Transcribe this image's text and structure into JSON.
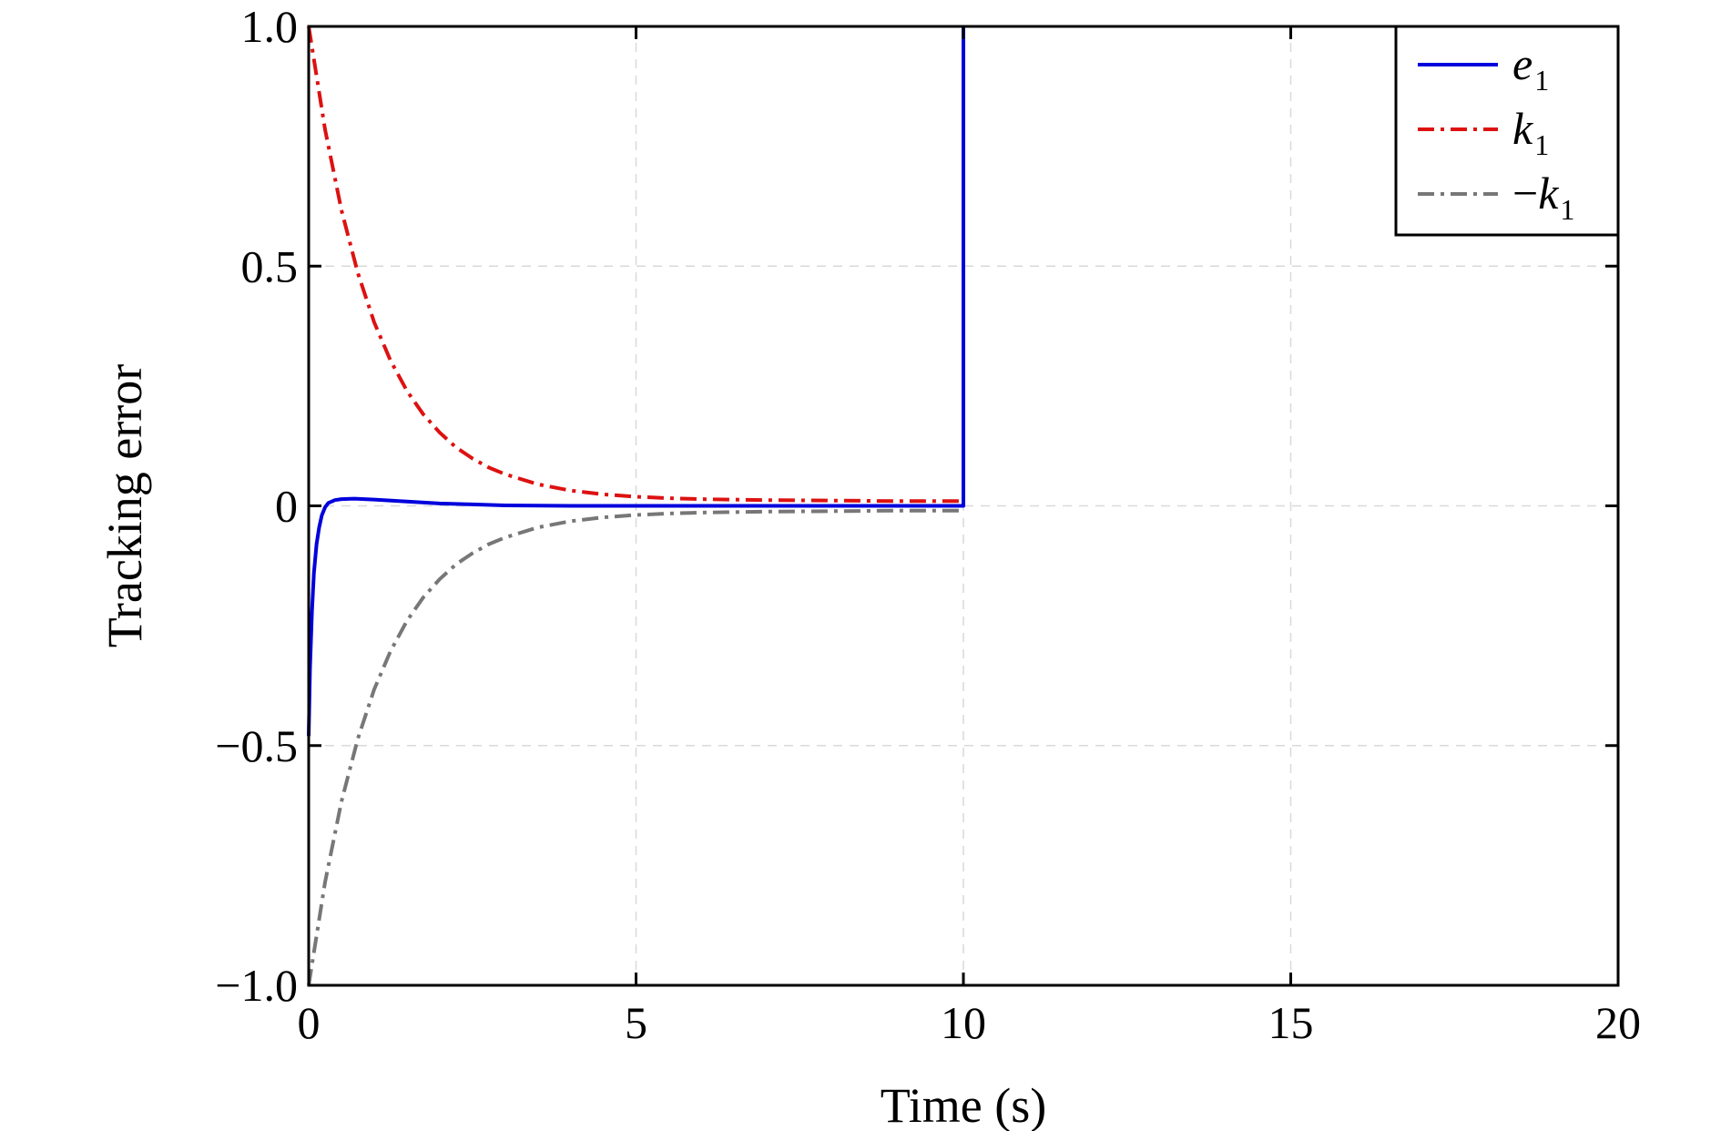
{
  "chart_data": {
    "type": "line",
    "xlabel": "Time (s)",
    "ylabel": "Tracking error",
    "xlim": [
      0,
      20
    ],
    "ylim": [
      -1.0,
      1.0
    ],
    "xticks": [
      0,
      5,
      10,
      15,
      20
    ],
    "xtick_labels": [
      "0",
      "5",
      "10",
      "15",
      "20"
    ],
    "yticks": [
      -1.0,
      -0.5,
      0,
      0.5,
      1.0
    ],
    "ytick_labels": [
      "−1.0",
      "−0.5",
      "0",
      "0.5",
      "1.0"
    ],
    "grid": true,
    "legend_position": "top-right",
    "series": [
      {
        "name": "e1",
        "legend_main": "e",
        "legend_sign": "",
        "legend_sub": "1",
        "color": "#0000dd",
        "style": "solid",
        "x": [
          0,
          0.02,
          0.05,
          0.08,
          0.12,
          0.16,
          0.2,
          0.25,
          0.3,
          0.4,
          0.5,
          0.7,
          1.0,
          1.5,
          2.0,
          2.5,
          3.0,
          4.0,
          5.0,
          6.0,
          8.0,
          9.99,
          10.0,
          10.0
        ],
        "y": [
          -0.48,
          -0.34,
          -0.22,
          -0.14,
          -0.08,
          -0.045,
          -0.02,
          -0.003,
          0.006,
          0.012,
          0.014,
          0.015,
          0.013,
          0.009,
          0.005,
          0.003,
          0.001,
          0.0,
          0.0,
          0.0,
          0.0,
          0.0,
          0.0,
          1.0
        ]
      },
      {
        "name": "k1",
        "legend_main": "k",
        "legend_sign": "",
        "legend_sub": "1",
        "color": "#dd1111",
        "style": "dashdot",
        "x": [
          0,
          0.25,
          0.5,
          0.75,
          1.0,
          1.25,
          1.5,
          1.75,
          2.0,
          2.25,
          2.5,
          2.75,
          3.0,
          3.5,
          4.0,
          4.5,
          5.0,
          5.5,
          6.0,
          7.0,
          8.0,
          9.0,
          10.0
        ],
        "y": [
          1.0,
          0.785,
          0.617,
          0.486,
          0.383,
          0.303,
          0.24,
          0.191,
          0.153,
          0.122,
          0.099,
          0.08,
          0.066,
          0.045,
          0.032,
          0.024,
          0.019,
          0.016,
          0.014,
          0.012,
          0.011,
          0.01,
          0.01
        ]
      },
      {
        "name": "−k1",
        "legend_main": "k",
        "legend_sign": "−",
        "legend_sub": "1",
        "color": "#777777",
        "style": "dashdot",
        "x": [
          0,
          0.25,
          0.5,
          0.75,
          1.0,
          1.25,
          1.5,
          1.75,
          2.0,
          2.25,
          2.5,
          2.75,
          3.0,
          3.5,
          4.0,
          4.5,
          5.0,
          5.5,
          6.0,
          7.0,
          8.0,
          9.0,
          10.0
        ],
        "y": [
          -1.0,
          -0.785,
          -0.617,
          -0.486,
          -0.383,
          -0.303,
          -0.24,
          -0.191,
          -0.153,
          -0.122,
          -0.099,
          -0.08,
          -0.066,
          -0.045,
          -0.032,
          -0.024,
          -0.019,
          -0.016,
          -0.014,
          -0.012,
          -0.011,
          -0.01,
          -0.01
        ]
      }
    ]
  }
}
